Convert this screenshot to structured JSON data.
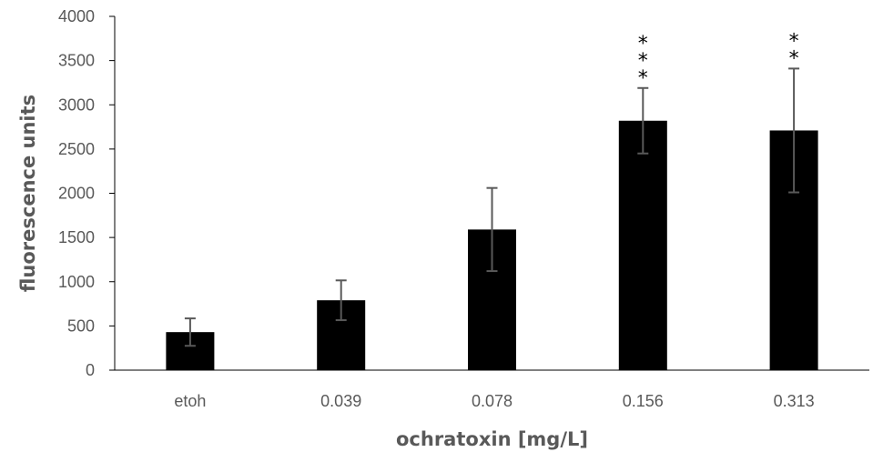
{
  "chart_data": {
    "type": "bar",
    "title": "",
    "xlabel": "ochratoxin [mg/L]",
    "ylabel": "fluorescence units",
    "categories": [
      "etoh",
      "0.039",
      "0.078",
      "0.156",
      "0.313"
    ],
    "series": [
      {
        "values": [
          430,
          790,
          1590,
          2820,
          2710
        ],
        "error": [
          155,
          225,
          470,
          370,
          700
        ]
      }
    ],
    "significance": [
      "",
      "",
      "",
      "***",
      "**"
    ],
    "ylim": [
      0,
      4000
    ],
    "yticks": [
      0,
      500,
      1000,
      1500,
      2000,
      2500,
      3000,
      3500,
      4000
    ],
    "grid": false,
    "legend": "none",
    "colors": {
      "bar": "#000000",
      "error_bar": "#595959",
      "axis": "#000000",
      "text": "#595959"
    }
  }
}
